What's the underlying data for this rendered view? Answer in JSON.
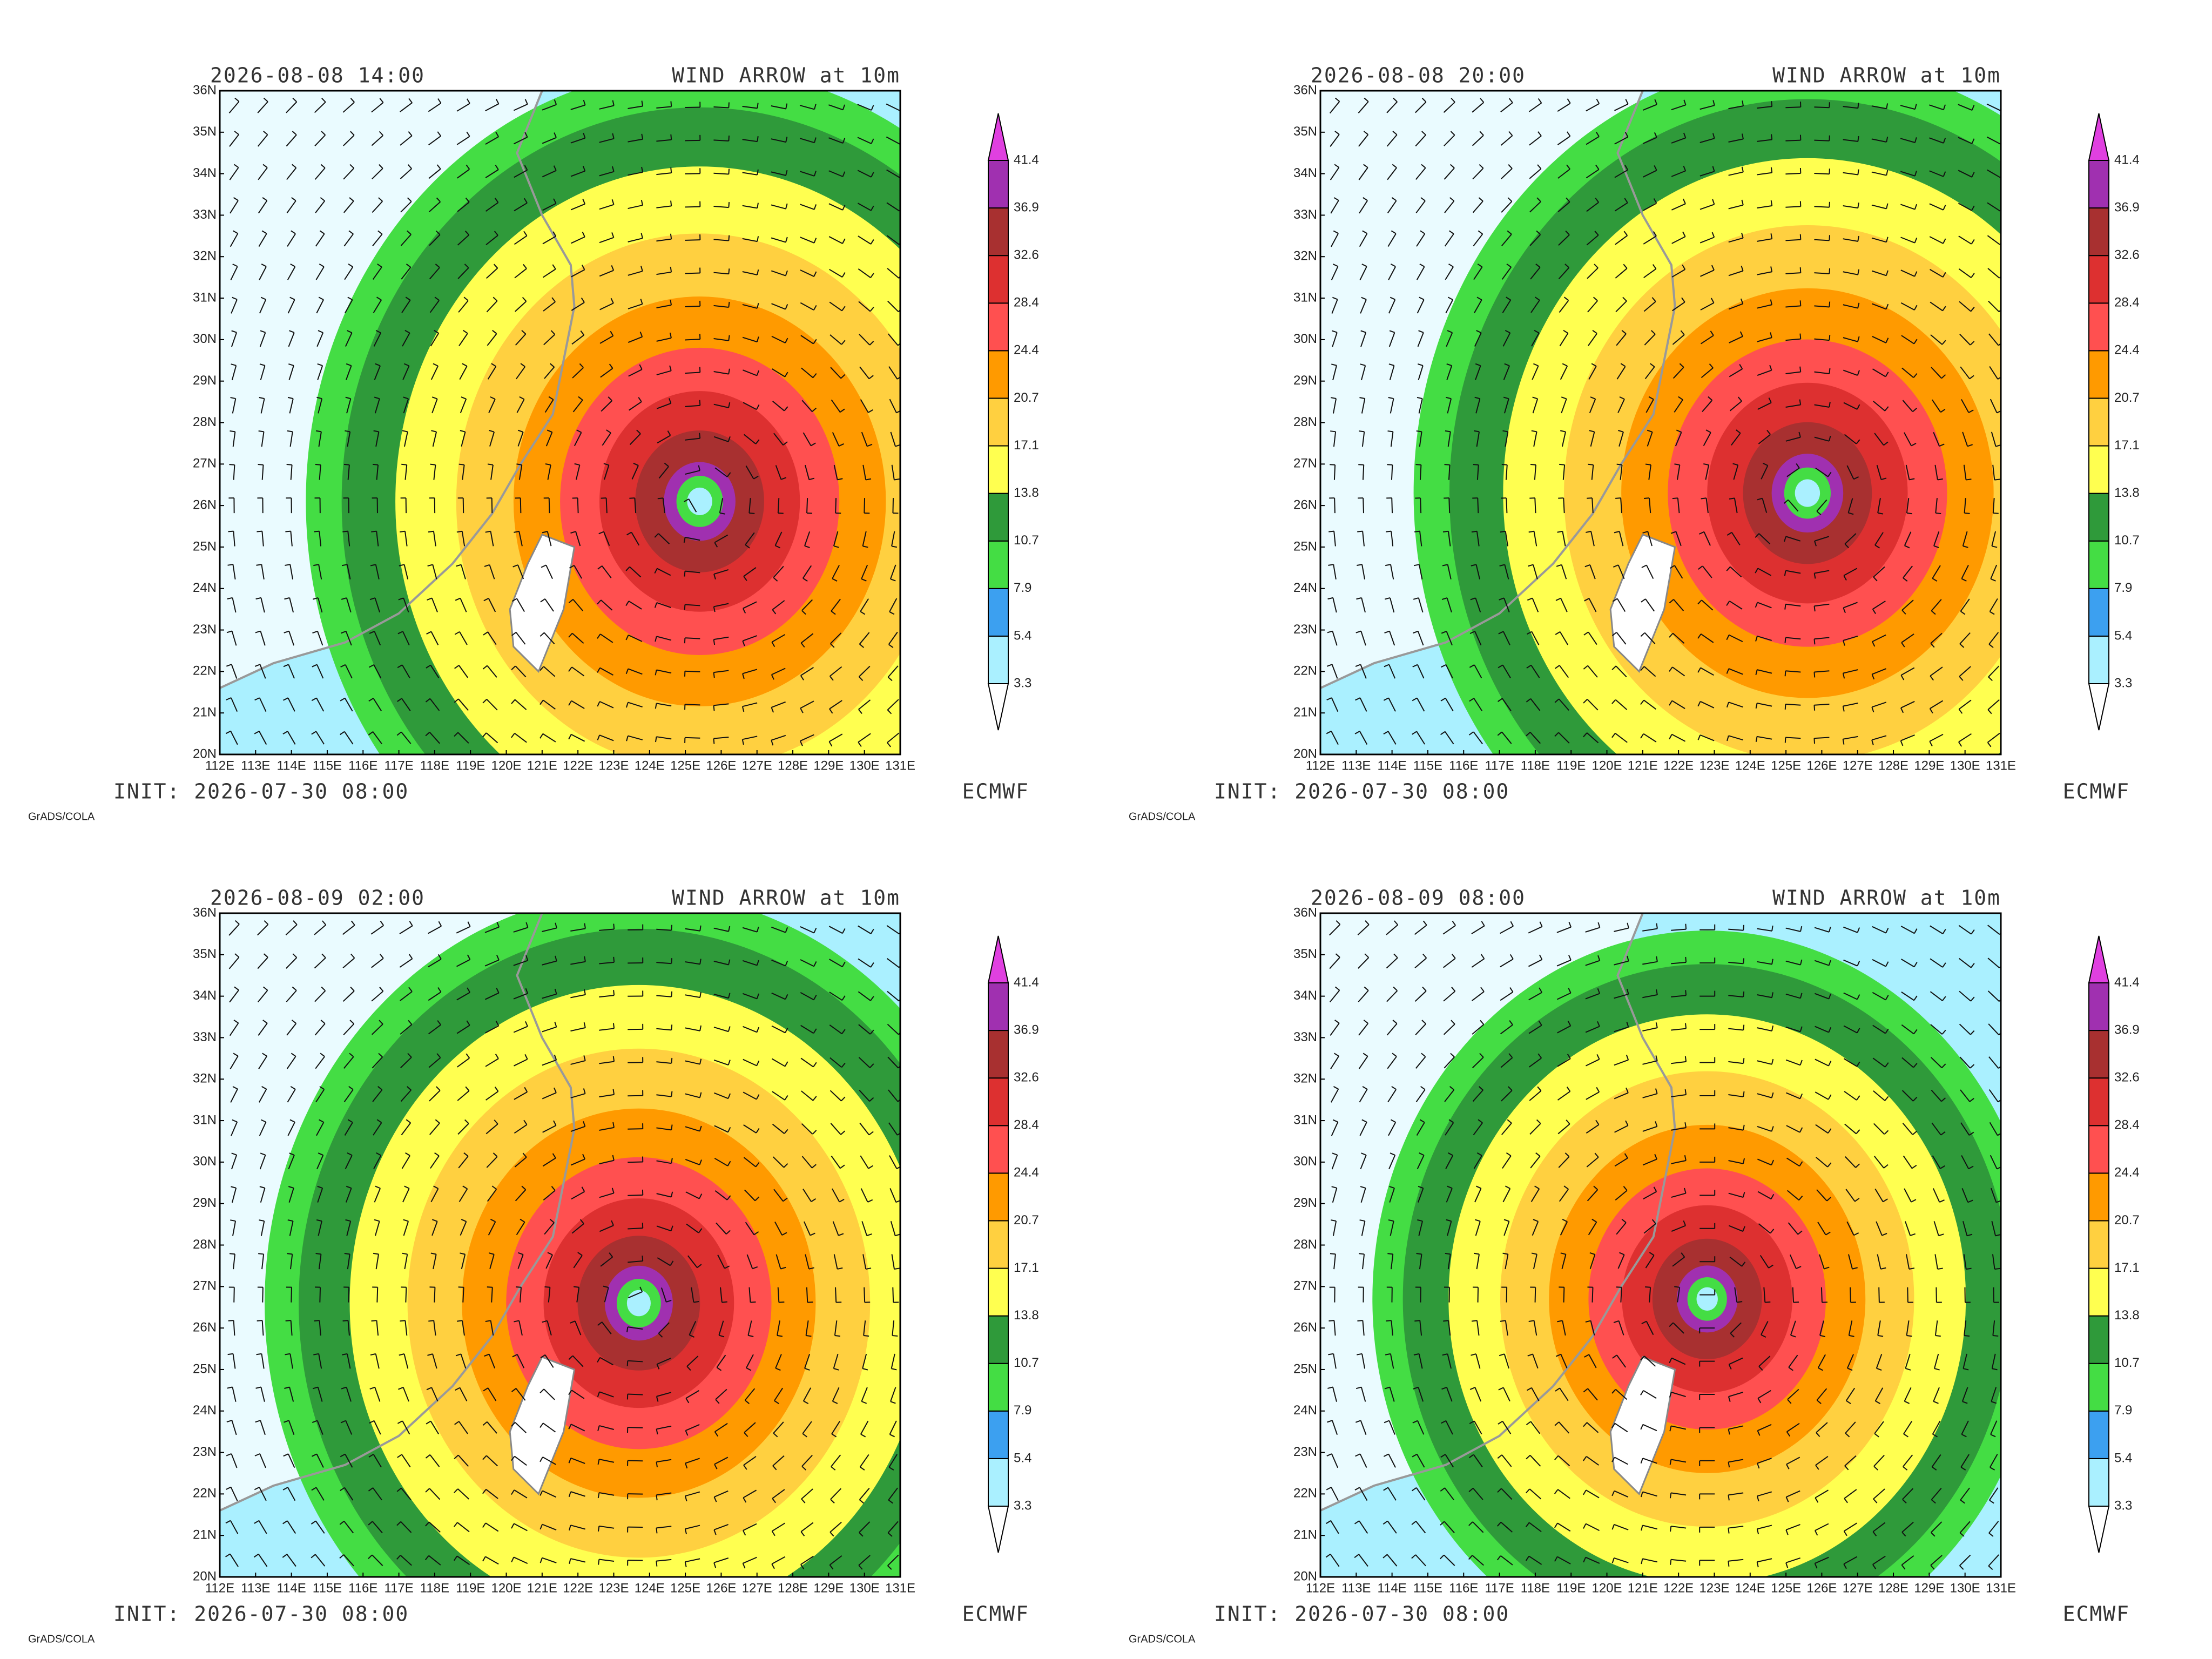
{
  "colors": [
    "#ffffff",
    "#aaf0ff",
    "#3ca0f0",
    "#44dd44",
    "#2f9a3a",
    "#ffff50",
    "#ffd040",
    "#ff9a00",
    "#ff5050",
    "#dd3030",
    "#a83030",
    "#a030b0",
    "#e040e0"
  ],
  "panels": [
    {
      "valid_time": "2026-08-08 14:00",
      "field": "WIND ARROW at 10m",
      "init": "INIT: 2026-07-30 08:00",
      "model": "ECMWF",
      "credit": "GrADS/COLA",
      "lat_ticks": [
        "20N",
        "21N",
        "22N",
        "23N",
        "24N",
        "25N",
        "26N",
        "27N",
        "28N",
        "29N",
        "30N",
        "31N",
        "32N",
        "33N",
        "34N",
        "35N",
        "36N"
      ],
      "lon_ticks": [
        "112E",
        "113E",
        "114E",
        "115E",
        "116E",
        "117E",
        "118E",
        "119E",
        "120E",
        "121E",
        "122E",
        "123E",
        "124E",
        "125E",
        "126E",
        "127E",
        "128E",
        "129E",
        "130E",
        "131E"
      ],
      "colorbar": {
        "levels": [
          3.3,
          5.4,
          7.9,
          10.7,
          13.8,
          17.1,
          20.7,
          24.4,
          28.4,
          32.6,
          36.9,
          41.4
        ]
      }
    },
    {
      "valid_time": "2026-08-08 20:00",
      "field": "WIND ARROW at 10m",
      "init": "INIT: 2026-07-30 08:00",
      "model": "ECMWF",
      "credit": "GrADS/COLA",
      "lat_ticks": [
        "20N",
        "21N",
        "22N",
        "23N",
        "24N",
        "25N",
        "26N",
        "27N",
        "28N",
        "29N",
        "30N",
        "31N",
        "32N",
        "33N",
        "34N",
        "35N",
        "36N"
      ],
      "lon_ticks": [
        "112E",
        "113E",
        "114E",
        "115E",
        "116E",
        "117E",
        "118E",
        "119E",
        "120E",
        "121E",
        "122E",
        "123E",
        "124E",
        "125E",
        "126E",
        "127E",
        "128E",
        "129E",
        "130E",
        "131E"
      ],
      "colorbar": {
        "levels": [
          3.3,
          5.4,
          7.9,
          10.7,
          13.8,
          17.1,
          20.7,
          24.4,
          28.4,
          32.6,
          36.9,
          41.4
        ]
      }
    },
    {
      "valid_time": "2026-08-09 02:00",
      "field": "WIND ARROW at 10m",
      "init": "INIT: 2026-07-30 08:00",
      "model": "ECMWF",
      "credit": "GrADS/COLA",
      "lat_ticks": [
        "20N",
        "21N",
        "22N",
        "23N",
        "24N",
        "25N",
        "26N",
        "27N",
        "28N",
        "29N",
        "30N",
        "31N",
        "32N",
        "33N",
        "34N",
        "35N",
        "36N"
      ],
      "lon_ticks": [
        "112E",
        "113E",
        "114E",
        "115E",
        "116E",
        "117E",
        "118E",
        "119E",
        "120E",
        "121E",
        "122E",
        "123E",
        "124E",
        "125E",
        "126E",
        "127E",
        "128E",
        "129E",
        "130E",
        "131E"
      ],
      "colorbar": {
        "levels": [
          3.3,
          5.4,
          7.9,
          10.7,
          13.8,
          17.1,
          20.7,
          24.4,
          28.4,
          32.6,
          36.9,
          41.4
        ]
      }
    },
    {
      "valid_time": "2026-08-09 08:00",
      "field": "WIND ARROW at 10m",
      "init": "INIT: 2026-07-30 08:00",
      "model": "ECMWF",
      "credit": "GrADS/COLA",
      "lat_ticks": [
        "20N",
        "21N",
        "22N",
        "23N",
        "24N",
        "25N",
        "26N",
        "27N",
        "28N",
        "29N",
        "30N",
        "31N",
        "32N",
        "33N",
        "34N",
        "35N",
        "36N"
      ],
      "lon_ticks": [
        "112E",
        "113E",
        "114E",
        "115E",
        "116E",
        "117E",
        "118E",
        "119E",
        "120E",
        "121E",
        "122E",
        "123E",
        "124E",
        "125E",
        "126E",
        "127E",
        "128E",
        "129E",
        "130E",
        "131E"
      ],
      "colorbar": {
        "levels": [
          3.3,
          5.4,
          7.9,
          10.7,
          13.8,
          17.1,
          20.7,
          24.4,
          28.4,
          32.6,
          36.9,
          41.4
        ]
      }
    }
  ]
}
